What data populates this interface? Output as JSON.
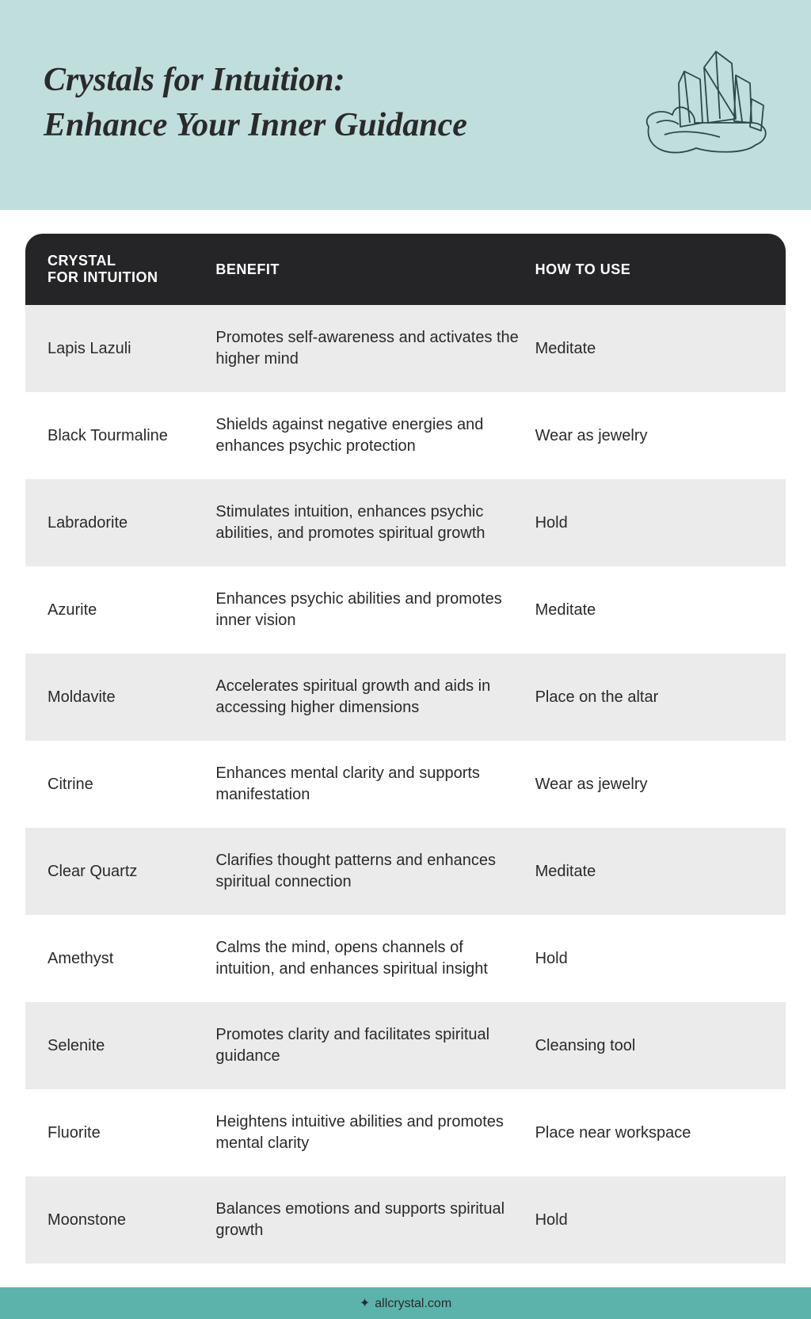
{
  "header": {
    "title_line1": "Crystals for Intuition:",
    "title_line2": "Enhance Your Inner Guidance",
    "bg_color": "#c0dedc",
    "text_color": "#2a2a2a",
    "title_fontsize_pt": 32
  },
  "table": {
    "header_bg": "#252527",
    "header_fg": "#ffffff",
    "row_odd_bg": "#ebebeb",
    "row_even_bg": "#ffffff",
    "font_size_pt": 15,
    "columns": [
      {
        "label_l1": "CRYSTAL",
        "label_l2": "FOR INTUITION",
        "width_pct": 24
      },
      {
        "label_l1": "BENEFIT",
        "label_l2": "",
        "width_pct": 42
      },
      {
        "label_l1": "HOW TO USE",
        "label_l2": "",
        "width_pct": 34
      }
    ],
    "rows": [
      {
        "crystal": "Lapis Lazuli",
        "benefit": "Promotes self-awareness and activates the higher mind",
        "use": "Meditate"
      },
      {
        "crystal": "Black Tourmaline",
        "benefit": "Shields against negative energies and enhances psychic protection",
        "use": "Wear as jewelry"
      },
      {
        "crystal": "Labradorite",
        "benefit": "Stimulates intuition, enhances psychic abilities, and promotes spiritual growth",
        "use": "Hold"
      },
      {
        "crystal": "Azurite",
        "benefit": "Enhances psychic abilities and promotes inner vision",
        "use": "Meditate"
      },
      {
        "crystal": "Moldavite",
        "benefit": "Accelerates spiritual growth and aids in accessing higher dimensions",
        "use": "Place on the altar"
      },
      {
        "crystal": "Citrine",
        "benefit": "Enhances mental clarity and supports manifestation",
        "use": "Wear as jewelry"
      },
      {
        "crystal": "Clear Quartz",
        "benefit": "Clarifies thought patterns and enhances spiritual connection",
        "use": "Meditate"
      },
      {
        "crystal": "Amethyst",
        "benefit": "Calms the mind, opens channels of intuition, and enhances spiritual insight",
        "use": "Hold"
      },
      {
        "crystal": "Selenite",
        "benefit": "Promotes clarity and facilitates spiritual guidance",
        "use": "Cleansing tool"
      },
      {
        "crystal": "Fluorite",
        "benefit": "Heightens intuitive abilities and promotes mental clarity",
        "use": "Place near workspace"
      },
      {
        "crystal": "Moonstone",
        "benefit": "Balances emotions and supports spiritual growth",
        "use": "Hold"
      }
    ]
  },
  "footer": {
    "site": "allcrystal.com",
    "bg_color": "#5bb3ac",
    "icon": "✦"
  }
}
